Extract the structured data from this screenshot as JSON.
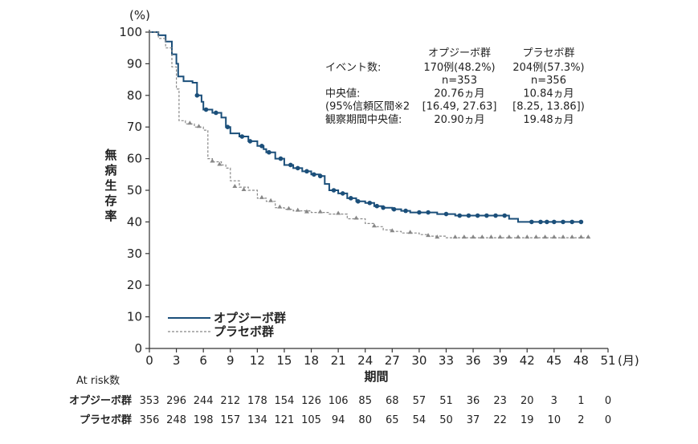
{
  "chart_data": {
    "type": "line",
    "y_unit": "(%)",
    "x_unit": "(月)",
    "ylabel_chars": [
      "無",
      "病",
      "生",
      "存",
      "率"
    ],
    "xlabel": "期間",
    "xlim": [
      0,
      51
    ],
    "ylim": [
      0,
      100
    ],
    "x_ticks": [
      0,
      3,
      6,
      9,
      12,
      15,
      18,
      21,
      24,
      27,
      30,
      33,
      36,
      39,
      42,
      45,
      48,
      51
    ],
    "y_ticks": [
      0,
      10,
      20,
      30,
      40,
      50,
      60,
      70,
      80,
      90,
      100
    ],
    "legend": [
      {
        "label": "オプジーボ群",
        "style": "solid"
      },
      {
        "label": "プラセボ群",
        "style": "dashed"
      }
    ],
    "series": [
      {
        "name": "オプジーボ群",
        "color": "#1b4f7a",
        "style": "solid",
        "points": [
          [
            0,
            100
          ],
          [
            1,
            99
          ],
          [
            1.8,
            97
          ],
          [
            2.5,
            93
          ],
          [
            3,
            90
          ],
          [
            3.2,
            86
          ],
          [
            3.8,
            84.5
          ],
          [
            4.8,
            84
          ],
          [
            5.3,
            80
          ],
          [
            5.8,
            78
          ],
          [
            6,
            75.5
          ],
          [
            7,
            74.5
          ],
          [
            8,
            73
          ],
          [
            8.5,
            70
          ],
          [
            9,
            68
          ],
          [
            10,
            67
          ],
          [
            11,
            65.5
          ],
          [
            12,
            64
          ],
          [
            12.7,
            63
          ],
          [
            13,
            62
          ],
          [
            14,
            60
          ],
          [
            15,
            58
          ],
          [
            16,
            57
          ],
          [
            17,
            56
          ],
          [
            18,
            55
          ],
          [
            19,
            54.5
          ],
          [
            19.5,
            52
          ],
          [
            20,
            50
          ],
          [
            21,
            49
          ],
          [
            22,
            47.5
          ],
          [
            23,
            46.5
          ],
          [
            24,
            46
          ],
          [
            25,
            45
          ],
          [
            26,
            44.5
          ],
          [
            27,
            44
          ],
          [
            28,
            43.5
          ],
          [
            29,
            43
          ],
          [
            30,
            43
          ],
          [
            32,
            42.5
          ],
          [
            34,
            42
          ],
          [
            36,
            42
          ],
          [
            38,
            42
          ],
          [
            39,
            42
          ],
          [
            40,
            41
          ],
          [
            41,
            40
          ],
          [
            42,
            40
          ],
          [
            44,
            40
          ],
          [
            46,
            40
          ],
          [
            48,
            40
          ]
        ],
        "censor_marks": [
          [
            5.3,
            80
          ],
          [
            6.3,
            75.5
          ],
          [
            7.4,
            74.5
          ],
          [
            8.7,
            70
          ],
          [
            10.3,
            67
          ],
          [
            11.2,
            65.5
          ],
          [
            12.5,
            64
          ],
          [
            13.3,
            62
          ],
          [
            14.6,
            60
          ],
          [
            15.7,
            58
          ],
          [
            16.5,
            57
          ],
          [
            17.5,
            56
          ],
          [
            18.3,
            55
          ],
          [
            19,
            54.5
          ],
          [
            20.5,
            50
          ],
          [
            21.5,
            49
          ],
          [
            22.4,
            47.5
          ],
          [
            23.2,
            46.5
          ],
          [
            24.5,
            46
          ],
          [
            25.3,
            45
          ],
          [
            26,
            44.5
          ],
          [
            27.2,
            44
          ],
          [
            28.5,
            43.5
          ],
          [
            30,
            43
          ],
          [
            31,
            43
          ],
          [
            33,
            42.5
          ],
          [
            34.5,
            42
          ],
          [
            35.5,
            42
          ],
          [
            36.5,
            42
          ],
          [
            37.5,
            42
          ],
          [
            38.5,
            42
          ],
          [
            39.5,
            42
          ],
          [
            42.5,
            40
          ],
          [
            43.5,
            40
          ],
          [
            44.2,
            40
          ],
          [
            45,
            40
          ],
          [
            46,
            40
          ],
          [
            47,
            40
          ],
          [
            48,
            40
          ]
        ]
      },
      {
        "name": "プラセボ群",
        "color": "#888888",
        "style": "dashed",
        "points": [
          [
            0,
            100
          ],
          [
            1,
            98
          ],
          [
            1.8,
            95
          ],
          [
            2.5,
            89
          ],
          [
            3,
            82
          ],
          [
            3.3,
            72
          ],
          [
            4,
            71
          ],
          [
            5,
            70
          ],
          [
            6,
            69
          ],
          [
            6.5,
            60
          ],
          [
            7,
            59
          ],
          [
            8,
            58
          ],
          [
            8.5,
            57
          ],
          [
            9,
            53
          ],
          [
            10,
            51
          ],
          [
            11,
            50
          ],
          [
            12,
            47.5
          ],
          [
            13,
            46.5
          ],
          [
            14,
            44.5
          ],
          [
            15,
            44
          ],
          [
            16,
            43.5
          ],
          [
            18,
            43
          ],
          [
            20,
            42.5
          ],
          [
            22,
            41
          ],
          [
            24,
            39.5
          ],
          [
            25,
            38.5
          ],
          [
            26,
            37.5
          ],
          [
            27,
            37
          ],
          [
            28,
            36.5
          ],
          [
            30,
            36
          ],
          [
            31,
            35.5
          ],
          [
            33,
            35
          ],
          [
            35,
            35
          ],
          [
            37,
            35
          ],
          [
            39,
            35
          ],
          [
            41,
            35
          ],
          [
            43,
            35
          ],
          [
            45,
            35
          ],
          [
            47,
            35
          ],
          [
            49,
            35
          ]
        ],
        "censor_marks": [
          [
            4.5,
            71
          ],
          [
            5.5,
            70
          ],
          [
            7,
            59
          ],
          [
            7.8,
            58
          ],
          [
            9.5,
            51
          ],
          [
            10.5,
            50
          ],
          [
            12.5,
            47.5
          ],
          [
            13.5,
            46.5
          ],
          [
            14.5,
            44.5
          ],
          [
            15.5,
            44
          ],
          [
            16.5,
            43.5
          ],
          [
            17.5,
            43
          ],
          [
            19,
            43
          ],
          [
            21,
            42.5
          ],
          [
            23,
            41
          ],
          [
            25,
            38.5
          ],
          [
            27,
            37
          ],
          [
            29,
            36.5
          ],
          [
            31,
            35.5
          ],
          [
            32,
            35
          ],
          [
            34,
            35
          ],
          [
            35,
            35
          ],
          [
            36,
            35
          ],
          [
            37,
            35
          ],
          [
            38,
            35
          ],
          [
            39,
            35
          ],
          [
            40,
            35
          ],
          [
            41,
            35
          ],
          [
            42,
            35
          ],
          [
            43,
            35
          ],
          [
            44,
            35
          ],
          [
            45,
            35
          ],
          [
            46,
            35
          ],
          [
            47,
            35
          ],
          [
            48,
            35
          ],
          [
            48.8,
            35
          ]
        ]
      }
    ],
    "annotations": {
      "header_opdivo": "オプジーボ群",
      "header_placebo": "プラセボ群",
      "rows": [
        {
          "label": "イベント数:",
          "opdivo": "170例(48.2%)",
          "placebo": "204例(57.3%)"
        },
        {
          "label": "",
          "opdivo": "n=353",
          "placebo": "n=356"
        },
        {
          "label": "中央値:",
          "opdivo": "20.76ヵ月",
          "placebo": "10.84ヵ月"
        },
        {
          "label": "(95%信頼区間※2",
          "opdivo": "[16.49, 27.63]",
          "placebo": "[8.25, 13.86])"
        },
        {
          "label": "観察期間中央値:",
          "opdivo": "20.90ヵ月",
          "placebo": "19.48ヵ月"
        }
      ]
    },
    "at_risk": {
      "title": "At risk数",
      "rows": [
        {
          "label": "オプジーボ群",
          "values": [
            353,
            296,
            244,
            212,
            178,
            154,
            126,
            106,
            85,
            68,
            57,
            51,
            36,
            23,
            20,
            3,
            1,
            0
          ]
        },
        {
          "label": "プラセボ群",
          "values": [
            356,
            248,
            198,
            157,
            134,
            121,
            105,
            94,
            80,
            65,
            54,
            50,
            37,
            22,
            19,
            10,
            2,
            0
          ]
        }
      ]
    }
  }
}
